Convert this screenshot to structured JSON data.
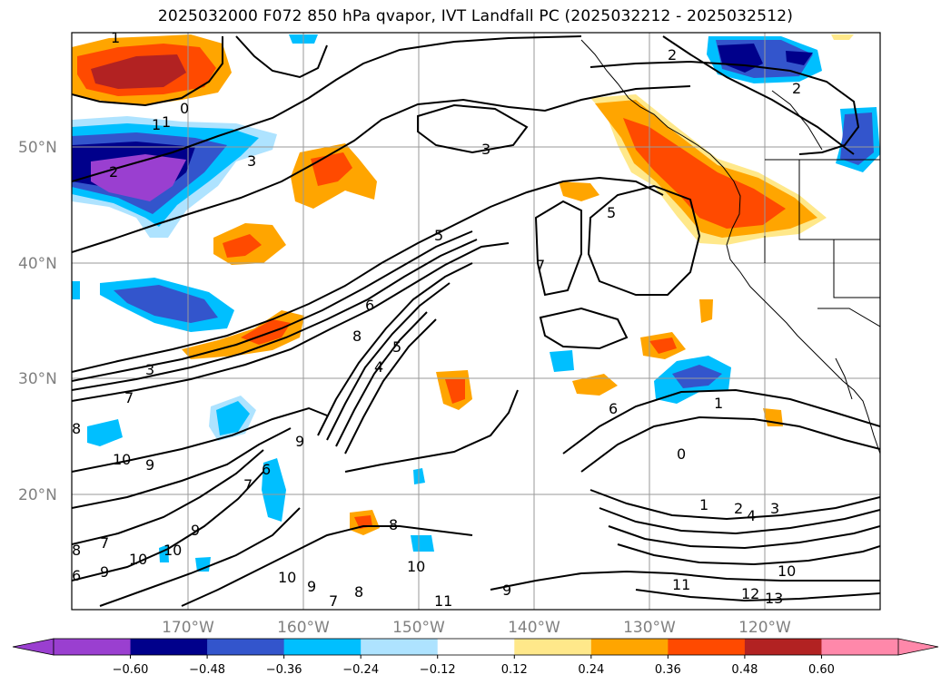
{
  "title": "2025032000 F072 850 hPa qvapor, IVT Landfall PC (2025032212 - 2025032512)",
  "lat_labels": [
    "50°N",
    "40°N",
    "30°N",
    "20°N"
  ],
  "lon_labels": [
    "170°W",
    "160°W",
    "150°W",
    "140°W",
    "130°W",
    "120°W"
  ],
  "colorbar": {
    "ticks": [
      "−0.60",
      "−0.48",
      "−0.36",
      "−0.24",
      "−0.12",
      "0.12",
      "0.24",
      "0.36",
      "0.48",
      "0.60"
    ],
    "colors": [
      "#9a3fd0",
      "#00008b",
      "#3355cc",
      "#00bfff",
      "#aee3ff",
      "#ffffff",
      "#ffe88a",
      "#ffa500",
      "#ff4a00",
      "#b22222",
      "#ff88aa"
    ]
  },
  "contour_labels": [
    "1",
    "0",
    "1",
    "2",
    "3",
    "3",
    "5",
    "5",
    "7",
    "6",
    "8",
    "5",
    "4",
    "3",
    "7",
    "8",
    "10",
    "9",
    "9",
    "6",
    "7",
    "9",
    "10",
    "10",
    "10",
    "9",
    "8",
    "7",
    "8",
    "9",
    "10",
    "1",
    "2",
    "4",
    "3",
    "6",
    "1",
    "0",
    "11",
    "12",
    "13",
    "10",
    "1",
    "2",
    "2",
    "9",
    "8",
    "6",
    "7",
    "11"
  ]
}
